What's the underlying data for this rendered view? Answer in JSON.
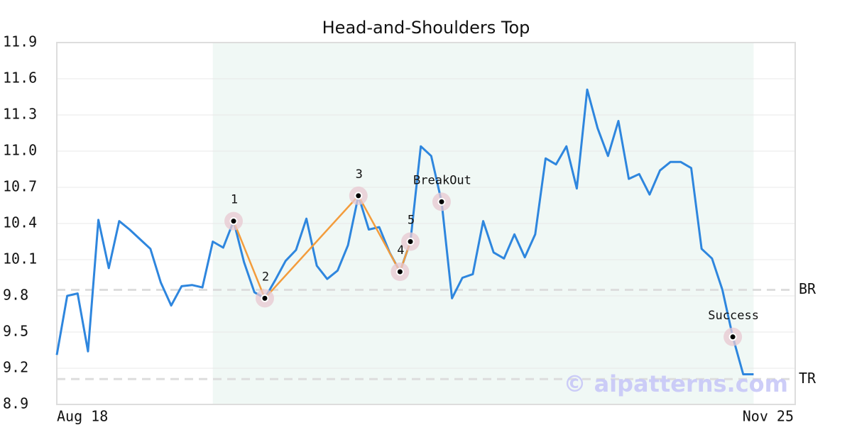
{
  "chart_data": {
    "type": "line",
    "title": "Head-and-Shoulders Top",
    "x": [
      0,
      1,
      2,
      3,
      4,
      5,
      6,
      7,
      8,
      9,
      10,
      11,
      12,
      13,
      14,
      15,
      16,
      17,
      18,
      19,
      20,
      21,
      22,
      23,
      24,
      25,
      26,
      27,
      28,
      29,
      30,
      31,
      32,
      33,
      34,
      35,
      36,
      37,
      38,
      39,
      40,
      41,
      42,
      43,
      44,
      45,
      46,
      47,
      48,
      49,
      50,
      51,
      52,
      53,
      54,
      55,
      56,
      57,
      58,
      59,
      60,
      61,
      62,
      63,
      64,
      65,
      66,
      67
    ],
    "series": [
      {
        "color": "#2e86de",
        "values": [
          9.31,
          9.8,
          9.82,
          9.34,
          10.43,
          10.03,
          10.42,
          10.35,
          10.27,
          10.19,
          9.91,
          9.72,
          9.88,
          9.89,
          9.87,
          10.25,
          10.2,
          10.42,
          10.08,
          9.83,
          9.78,
          9.93,
          10.09,
          10.18,
          10.44,
          10.05,
          9.94,
          10.01,
          10.22,
          10.63,
          10.35,
          10.37,
          10.16,
          10.0,
          10.25,
          11.04,
          10.96,
          10.58,
          9.78,
          9.95,
          9.98,
          10.42,
          10.16,
          10.11,
          10.31,
          10.12,
          10.31,
          10.94,
          10.89,
          11.04,
          10.69,
          11.51,
          11.19,
          10.96,
          11.25,
          10.77,
          10.81,
          10.64,
          10.84,
          10.91,
          10.91,
          10.86,
          10.19,
          10.11,
          9.85,
          9.46,
          9.15,
          9.15
        ]
      }
    ],
    "pattern": {
      "color": "#f39c3c",
      "x": [
        17,
        20,
        29,
        33,
        34
      ],
      "values": [
        10.42,
        9.78,
        10.63,
        10.0,
        10.25
      ]
    },
    "annotations": [
      {
        "label": "1",
        "x": 17,
        "y": 10.42
      },
      {
        "label": "2",
        "x": 20,
        "y": 9.78
      },
      {
        "label": "3",
        "x": 29,
        "y": 10.63
      },
      {
        "label": "4",
        "x": 33,
        "y": 10.0
      },
      {
        "label": "5",
        "x": 34,
        "y": 10.25
      },
      {
        "label": "BreakOut",
        "x": 37,
        "y": 10.58
      },
      {
        "label": "Success",
        "x": 65,
        "y": 9.46
      }
    ],
    "reference_lines": [
      {
        "label": "BR",
        "value": 9.85
      },
      {
        "label": "TR",
        "value": 9.11
      }
    ],
    "highlight_x": [
      15,
      67
    ],
    "xlim": [
      0,
      71
    ],
    "xticks": [
      {
        "value": 0,
        "label": "Aug 18"
      },
      {
        "value": 71,
        "label": "Nov 25"
      }
    ],
    "ylim": [
      8.9,
      11.9
    ],
    "yticks": [
      8.9,
      9.2,
      9.5,
      9.8,
      10.1,
      10.4,
      10.7,
      {
        "value": 11.0,
        "label": "11.0"
      },
      11.3,
      11.6,
      11.9
    ],
    "grid": true,
    "watermark": "© aipatterns.com"
  }
}
